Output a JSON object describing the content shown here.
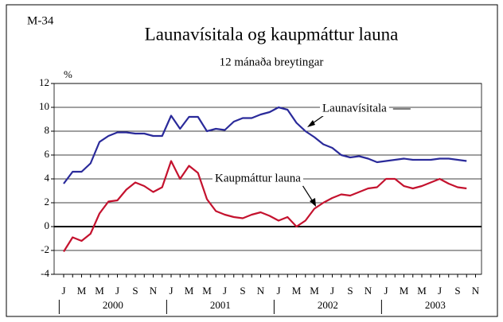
{
  "code": "M-34",
  "chart_data": {
    "type": "line",
    "title": "Launavísitala og kaupmáttur launa",
    "subtitle": "12 mánaða breytingar",
    "y_label": "%",
    "categories": [
      "J",
      null,
      "M",
      null,
      "M",
      null,
      "J",
      null,
      "S",
      null,
      "N",
      null,
      "J",
      null,
      "M",
      null,
      "M",
      null,
      "J",
      null,
      "S",
      null,
      "N",
      null,
      "J",
      null,
      "M",
      null,
      "M",
      null,
      "J",
      null,
      "S",
      null,
      "N",
      null,
      "J",
      null,
      "M",
      null,
      "M",
      null,
      "J",
      null,
      "S",
      null,
      "N"
    ],
    "year_labels": [
      "2000",
      "2001",
      "2002",
      "2003"
    ],
    "ylim": [
      -4,
      12
    ],
    "yticks": [
      -4,
      -2,
      0,
      2,
      4,
      6,
      8,
      10,
      12
    ],
    "grid": true,
    "series": [
      {
        "name": "Launavísitala",
        "color": "#2a2a9a",
        "values": [
          3.6,
          4.6,
          4.6,
          5.3,
          7.1,
          7.6,
          7.9,
          7.9,
          7.8,
          7.8,
          7.6,
          7.6,
          9.3,
          8.2,
          9.2,
          9.2,
          8.0,
          8.2,
          8.1,
          8.8,
          9.1,
          9.1,
          9.4,
          9.6,
          10.0,
          9.8,
          8.7,
          8.0,
          7.5,
          6.9,
          6.6,
          6.0,
          5.8,
          5.9,
          5.7,
          5.4,
          5.5,
          5.6,
          5.7,
          5.6,
          5.6,
          5.6,
          5.7,
          5.7,
          5.6,
          5.5,
          null
        ]
      },
      {
        "name": "Kaupmáttur launa",
        "color": "#c4122e",
        "values": [
          -2.1,
          -0.9,
          -1.2,
          -0.6,
          1.1,
          2.1,
          2.2,
          3.1,
          3.7,
          3.4,
          2.9,
          3.3,
          5.5,
          4.0,
          5.1,
          4.5,
          2.3,
          1.3,
          1.0,
          0.8,
          0.7,
          1.0,
          1.2,
          0.9,
          0.5,
          0.8,
          0.0,
          0.5,
          1.5,
          2.0,
          2.4,
          2.7,
          2.6,
          2.9,
          3.2,
          3.3,
          4.0,
          4.0,
          3.4,
          3.2,
          3.4,
          3.7,
          4.0,
          3.6,
          3.3,
          3.2,
          null
        ]
      }
    ]
  }
}
